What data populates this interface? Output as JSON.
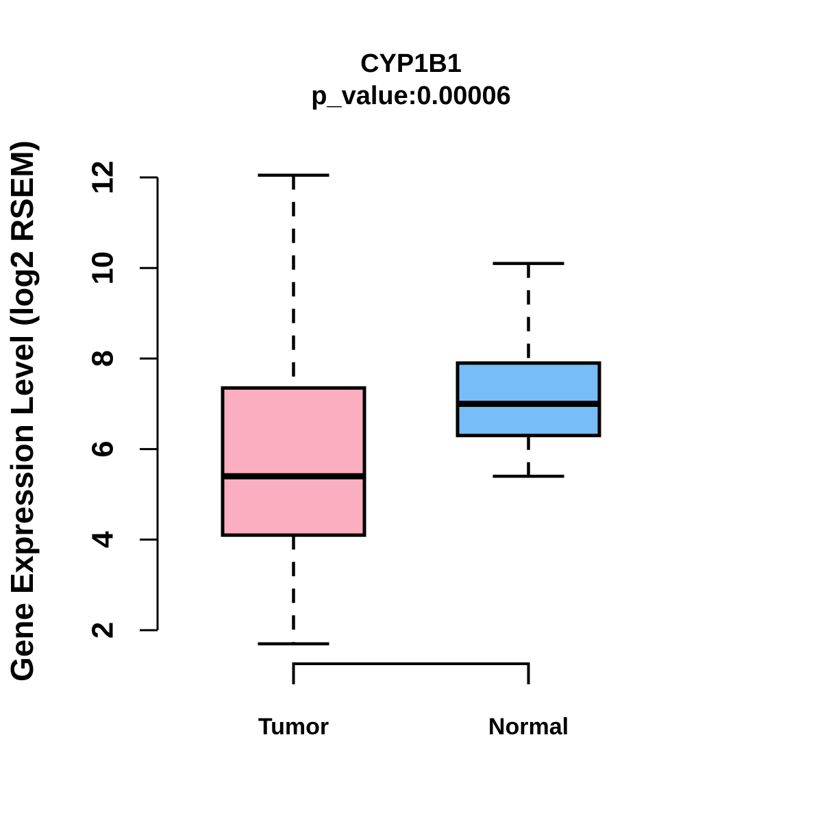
{
  "figure": {
    "title": "CYP1B1",
    "subtitle": "p_value:0.00006",
    "ylabel": "Gene Expression Level (log2 RSEM)"
  },
  "chart_data": {
    "type": "boxplot",
    "title": "CYP1B1",
    "subtitle": "p_value:0.00006",
    "ylabel": "Gene Expression Level (log2 RSEM)",
    "xlabel": "",
    "categories": [
      "Tumor",
      "Normal"
    ],
    "yticks": [
      2,
      4,
      6,
      8,
      10,
      12
    ],
    "ylim": [
      1.5,
      12.2
    ],
    "grid": false,
    "legend": "none",
    "series": [
      {
        "name": "Tumor",
        "whisker_low": 1.7,
        "q1": 4.1,
        "median": 5.4,
        "q3": 7.35,
        "whisker_high": 12.05,
        "fill_color": "#FBAEC0"
      },
      {
        "name": "Normal",
        "whisker_low": 5.4,
        "q1": 6.3,
        "median": 7.0,
        "q3": 7.9,
        "whisker_high": 10.1,
        "fill_color": "#77BDF7"
      }
    ],
    "comparison_bracket": {
      "from": "Tumor",
      "to": "Normal"
    },
    "stroke_color": "#000000",
    "background_color": "#FFFFFF"
  }
}
